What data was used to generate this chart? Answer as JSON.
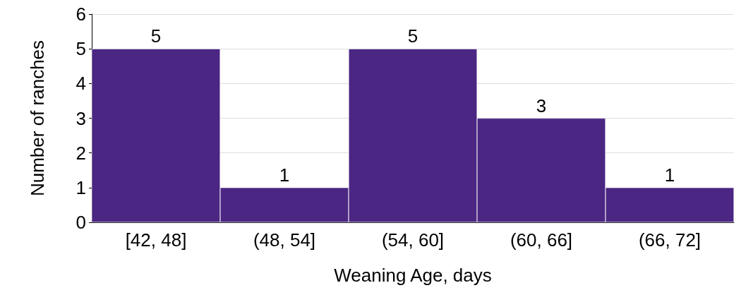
{
  "chart_data": {
    "type": "bar",
    "xlabel": "Weaning Age, days",
    "ylabel": "Number of ranches",
    "categories": [
      "[42, 48]",
      "(48, 54]",
      "(54, 60]",
      "(60, 66]",
      "(66, 72]"
    ],
    "values": [
      5,
      1,
      5,
      3,
      1
    ],
    "color": "#4b2683",
    "ylim": [
      0,
      6
    ],
    "yticks": [
      0,
      1,
      2,
      3,
      4,
      5,
      6
    ],
    "grid": "y",
    "data_labels": true
  }
}
